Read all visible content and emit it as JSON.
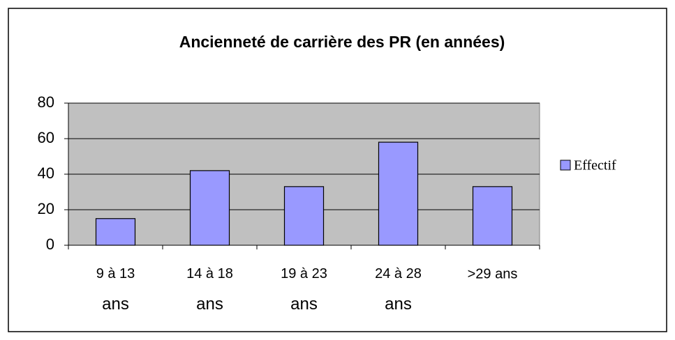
{
  "chart_data": {
    "type": "bar",
    "title": "Ancienneté de carrière des PR (en années)",
    "categories": [
      "9 à 13 ans",
      "14 à 18 ans",
      "19 à 23 ans",
      "24 à 28 ans",
      ">29 ans"
    ],
    "series": [
      {
        "name": "Effectif",
        "color": "#9999ff",
        "values": [
          15,
          42,
          33,
          58,
          33
        ]
      }
    ],
    "ylim": [
      0,
      80
    ],
    "yticks": [
      0,
      20,
      40,
      60,
      80
    ],
    "grid": true,
    "legend": "right"
  }
}
